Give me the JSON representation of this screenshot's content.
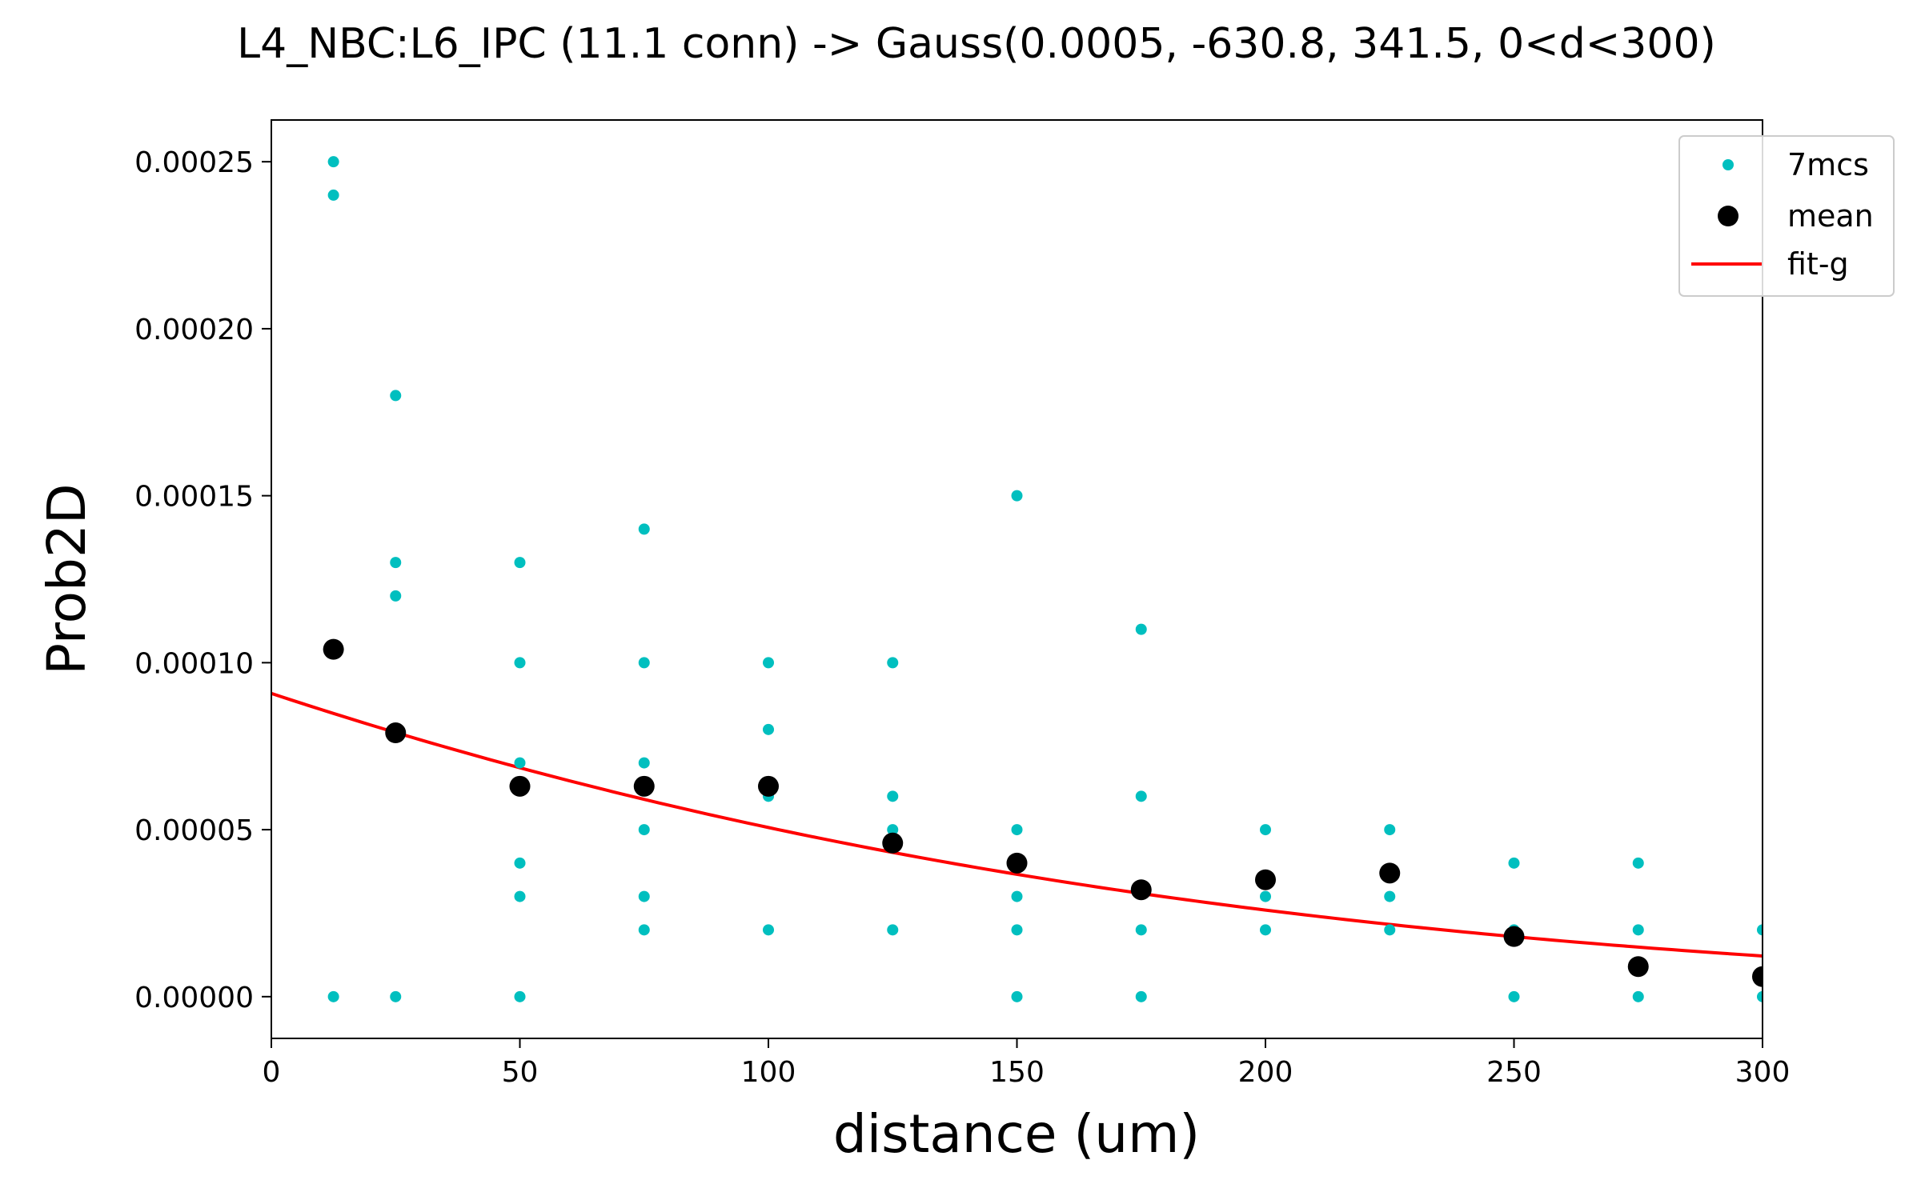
{
  "chart_data": {
    "type": "scatter",
    "title": "L4_NBC:L6_IPC (11.1 conn) -> Gauss(0.0005, -630.8, 341.5, 0<d<300)",
    "xlabel": "distance (um)",
    "ylabel": "Prob2D",
    "xlim": [
      0,
      300
    ],
    "ylim": [
      -1.25e-05,
      0.0002625
    ],
    "xticks": [
      0,
      50,
      100,
      150,
      200,
      250,
      300
    ],
    "yticks": [
      0.0,
      5e-05,
      0.0001,
      0.00015,
      0.0002,
      0.00025
    ],
    "ytick_labels": [
      "0.00000",
      "0.00005",
      "0.00010",
      "0.00015",
      "0.00020",
      "0.00025"
    ],
    "xtick_labels": [
      "0",
      "50",
      "100",
      "150",
      "200",
      "250",
      "300"
    ],
    "grid": false,
    "legend_position": "top-right",
    "series": [
      {
        "name": "7mcs",
        "kind": "points",
        "color": "#00bfbf",
        "points": [
          [
            12.5,
            0.00025
          ],
          [
            12.5,
            0.00024
          ],
          [
            12.5,
            0.0
          ],
          [
            25,
            0.00018
          ],
          [
            25,
            0.00013
          ],
          [
            25,
            0.00012
          ],
          [
            25,
            0.0
          ],
          [
            50,
            0.00013
          ],
          [
            50,
            0.0001
          ],
          [
            50,
            7e-05
          ],
          [
            50,
            4e-05
          ],
          [
            50,
            3e-05
          ],
          [
            50,
            0.0
          ],
          [
            75,
            0.00014
          ],
          [
            75,
            0.0001
          ],
          [
            75,
            7e-05
          ],
          [
            75,
            5e-05
          ],
          [
            75,
            3e-05
          ],
          [
            75,
            2e-05
          ],
          [
            100,
            0.0001
          ],
          [
            100,
            8e-05
          ],
          [
            100,
            6e-05
          ],
          [
            100,
            2e-05
          ],
          [
            125,
            0.0001
          ],
          [
            125,
            6e-05
          ],
          [
            125,
            5e-05
          ],
          [
            125,
            2e-05
          ],
          [
            150,
            0.00015
          ],
          [
            150,
            5e-05
          ],
          [
            150,
            3e-05
          ],
          [
            150,
            2e-05
          ],
          [
            150,
            0.0
          ],
          [
            175,
            0.00011
          ],
          [
            175,
            6e-05
          ],
          [
            175,
            2e-05
          ],
          [
            175,
            0.0
          ],
          [
            200,
            5e-05
          ],
          [
            200,
            3e-05
          ],
          [
            200,
            2e-05
          ],
          [
            225,
            5e-05
          ],
          [
            225,
            3e-05
          ],
          [
            225,
            2e-05
          ],
          [
            250,
            4e-05
          ],
          [
            250,
            2e-05
          ],
          [
            250,
            0.0
          ],
          [
            275,
            4e-05
          ],
          [
            275,
            2e-05
          ],
          [
            275,
            0.0
          ],
          [
            300,
            2e-05
          ],
          [
            300,
            0.0
          ]
        ]
      },
      {
        "name": "mean",
        "kind": "points",
        "color": "#000000",
        "points": [
          [
            12.5,
            0.000104
          ],
          [
            25,
            7.9e-05
          ],
          [
            50,
            6.3e-05
          ],
          [
            75,
            6.3e-05
          ],
          [
            100,
            6.3e-05
          ],
          [
            125,
            4.6e-05
          ],
          [
            150,
            4e-05
          ],
          [
            175,
            3.2e-05
          ],
          [
            200,
            3.5e-05
          ],
          [
            225,
            3.7e-05
          ],
          [
            250,
            1.8e-05
          ],
          [
            275,
            9e-06
          ],
          [
            300,
            6e-06
          ]
        ]
      },
      {
        "name": "fit-g",
        "kind": "line",
        "color": "#ff0000",
        "function": "gauss",
        "params": [
          0.0005,
          -630.8,
          341.5
        ],
        "domain": [
          0,
          300
        ]
      }
    ]
  }
}
